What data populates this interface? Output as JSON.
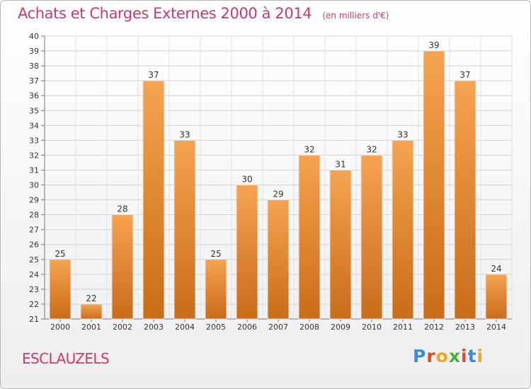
{
  "header": {
    "title": "Achats et Charges Externes 2000 à 2014",
    "unit": "(en milliers d'€)"
  },
  "place": "ESCLAUZELS",
  "logo": {
    "text": "Proxiti",
    "colors": [
      "#3a8ed8",
      "#e5472c",
      "#f2a623",
      "#4cae3c",
      "#e5472c",
      "#3a8ed8",
      "#f2a623"
    ]
  },
  "colors": {
    "title": "#d6356c",
    "bar_light": "#f6a34f",
    "bar_dark": "#c96c18"
  },
  "chart_data": {
    "type": "bar",
    "title": "Achats et Charges Externes 2000 à 2014",
    "xlabel": "",
    "ylabel": "",
    "categories": [
      "2000",
      "2001",
      "2002",
      "2003",
      "2004",
      "2005",
      "2006",
      "2007",
      "2008",
      "2009",
      "2010",
      "2011",
      "2012",
      "2013",
      "2014"
    ],
    "values": [
      25,
      22,
      28,
      37,
      33,
      25,
      30,
      29,
      32,
      31,
      32,
      33,
      39,
      37,
      24
    ],
    "ylim": [
      21,
      40
    ],
    "yticks": [
      21,
      22,
      23,
      24,
      25,
      26,
      27,
      28,
      29,
      30,
      31,
      32,
      33,
      34,
      35,
      36,
      37,
      38,
      39,
      40
    ],
    "grid": true,
    "legend": "none"
  }
}
